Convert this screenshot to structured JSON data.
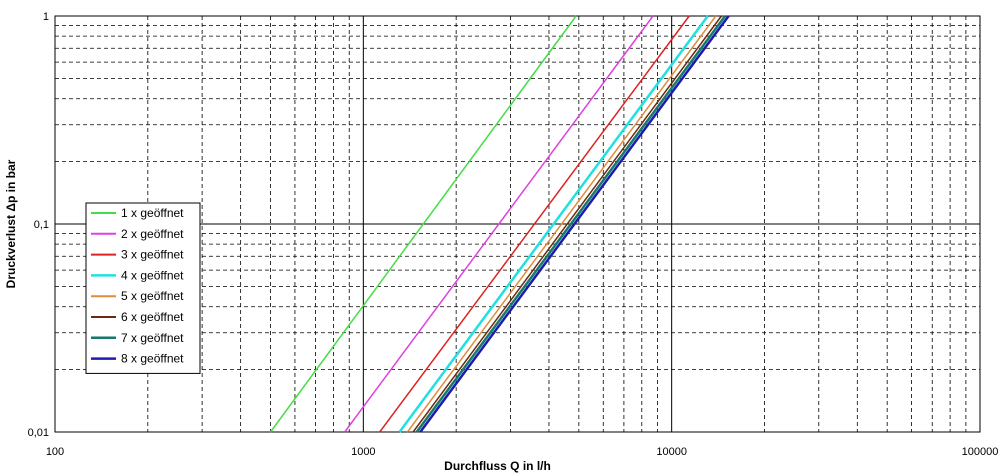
{
  "chart_data": {
    "type": "line",
    "title": "",
    "xlabel": "Durchfluss Q in l/h",
    "ylabel": "Druckverlust Δp in bar",
    "x_scale": "log",
    "y_scale": "log",
    "xlim": [
      100,
      100000
    ],
    "ylim": [
      0.01,
      1
    ],
    "grid": true,
    "legend_position": "left-middle",
    "x_ticks": [
      {
        "value": 100,
        "label": "100"
      },
      {
        "value": 1000,
        "label": "1000"
      },
      {
        "value": 10000,
        "label": "10000"
      },
      {
        "value": 100000,
        "label": "100000"
      }
    ],
    "y_ticks": [
      {
        "value": 0.01,
        "label": "0,01"
      },
      {
        "value": 0.1,
        "label": "0,1"
      },
      {
        "value": 1,
        "label": "1"
      }
    ],
    "series": [
      {
        "name": "1 x geöffnet",
        "color": "#44dd44",
        "width": 1.5,
        "x": [
          500,
          4900
        ],
        "y": [
          0.01,
          1
        ]
      },
      {
        "name": "2 x geöffnet",
        "color": "#e040e0",
        "width": 1.5,
        "x": [
          870,
          8700
        ],
        "y": [
          0.01,
          1
        ]
      },
      {
        "name": "3 x geöffnet",
        "color": "#dd2222",
        "width": 1.5,
        "x": [
          1130,
          11400
        ],
        "y": [
          0.01,
          1
        ]
      },
      {
        "name": "4 x geöffnet",
        "color": "#22e0e0",
        "width": 2.5,
        "x": [
          1310,
          13100
        ],
        "y": [
          0.01,
          1
        ]
      },
      {
        "name": "5 x geöffnet",
        "color": "#e08c3a",
        "width": 1.5,
        "x": [
          1390,
          13900
        ],
        "y": [
          0.01,
          1
        ]
      },
      {
        "name": "6 x geöffnet",
        "color": "#6b2a10",
        "width": 1.5,
        "x": [
          1450,
          14500
        ],
        "y": [
          0.01,
          1
        ]
      },
      {
        "name": "7 x geöffnet",
        "color": "#157a6e",
        "width": 2.5,
        "x": [
          1490,
          14900
        ],
        "y": [
          0.01,
          1
        ]
      },
      {
        "name": "8 x geöffnet",
        "color": "#1c1cb0",
        "width": 2.5,
        "x": [
          1530,
          15300
        ],
        "y": [
          0.01,
          1
        ]
      }
    ]
  }
}
